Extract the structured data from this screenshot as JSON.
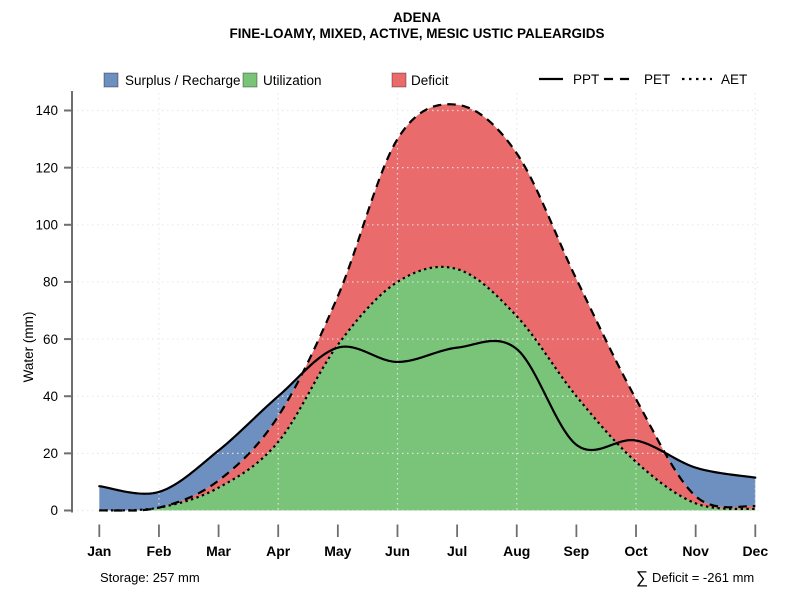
{
  "title": "ADENA",
  "subtitle": "FINE-LOAMY, MIXED, ACTIVE, MESIC USTIC PALEARGIDS",
  "legend": {
    "surplus": "Surplus / Recharge",
    "utilization": "Utilization",
    "deficit": "Deficit",
    "ppt": "PPT",
    "pet": "PET",
    "aet": "AET"
  },
  "footer": {
    "storage": "Storage: 257 mm",
    "sigma": "∑",
    "deficit": "Deficit = -261 mm"
  },
  "colors": {
    "surplus": "#6E90C0",
    "utilization": "#7AC47A",
    "deficit": "#E96B6B",
    "line": "#000000",
    "axis": "#6E6E6E",
    "grid": "#E7E7E7"
  },
  "chart_data": {
    "type": "area",
    "title": "ADENA",
    "subtitle": "FINE-LOAMY, MIXED, ACTIVE, MESIC USTIC PALEARGIDS",
    "ylabel": "Water (mm)",
    "xlabel": "",
    "ylim": [
      0,
      146
    ],
    "yticks": [
      0,
      20,
      40,
      60,
      80,
      100,
      120,
      140
    ],
    "categories": [
      "Jan",
      "Feb",
      "Mar",
      "Apr",
      "May",
      "Jun",
      "Jul",
      "Aug",
      "Sep",
      "Oct",
      "Nov",
      "Dec"
    ],
    "grid_vertical_months": [
      "Feb",
      "Apr",
      "Jun",
      "Aug",
      "Oct",
      "Dec"
    ],
    "grid": true,
    "legend_position": "top",
    "series": [
      {
        "name": "PPT",
        "line": "solid",
        "values": [
          8.5,
          6.5,
          21,
          40,
          57,
          52,
          57,
          56.5,
          23,
          24.5,
          15,
          11.5
        ]
      },
      {
        "name": "PET",
        "line": "dashed",
        "values": [
          0,
          1,
          10.5,
          33,
          75,
          130,
          142,
          125,
          81,
          39,
          5,
          1.5
        ]
      },
      {
        "name": "AET",
        "line": "dotted",
        "values": [
          0,
          1,
          8,
          24,
          58,
          80,
          84.5,
          68,
          40,
          17,
          2.5,
          0.5
        ]
      }
    ],
    "areas": [
      {
        "name": "Surplus / Recharge",
        "color": "#6E90C0",
        "rule": "between PPT and PET where PPT > PET"
      },
      {
        "name": "Utilization",
        "color": "#7AC47A",
        "rule": "between 0 and AET"
      },
      {
        "name": "Deficit",
        "color": "#E96B6B",
        "rule": "between AET and PET"
      }
    ],
    "annotations": {
      "storage": "Storage: 257 mm",
      "sum_deficit": "∑ Deficit = -261 mm"
    }
  }
}
